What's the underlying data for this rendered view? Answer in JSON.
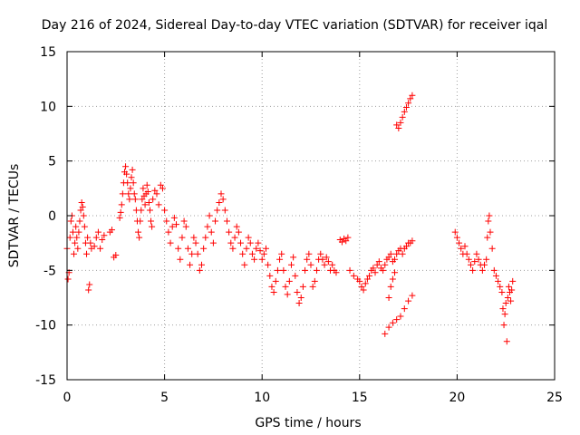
{
  "chart_data": {
    "type": "scatter",
    "title": "Day 216 of 2024, Sidereal Day-to-day VTEC variation (SDTVAR) for receiver iqal",
    "xlabel": "GPS time / hours",
    "ylabel": "SDTVAR / TECUs",
    "xlim": [
      0,
      25
    ],
    "ylim": [
      -15,
      15
    ],
    "xticks": [
      0,
      5,
      10,
      15,
      20,
      25
    ],
    "yticks": [
      -15,
      -10,
      -5,
      0,
      5,
      10,
      15
    ],
    "xtick_labels": [
      "0",
      "5",
      "10",
      "15",
      "20",
      "25"
    ],
    "ytick_labels": [
      "-15",
      "-10",
      "-5",
      "0",
      "5",
      "10",
      "15"
    ],
    "grid": true,
    "marker": "+",
    "color": "#ff0000",
    "series": [
      {
        "name": "SDTVAR iqal",
        "points": [
          [
            0.0,
            -3.0
          ],
          [
            0.05,
            -5.8
          ],
          [
            0.1,
            -5.2
          ],
          [
            0.15,
            -2.0
          ],
          [
            0.2,
            -0.5
          ],
          [
            0.25,
            0.0
          ],
          [
            0.3,
            -1.5
          ],
          [
            0.35,
            -3.5
          ],
          [
            0.4,
            -2.5
          ],
          [
            0.45,
            -1.0
          ],
          [
            0.5,
            -2.0
          ],
          [
            0.55,
            -3.0
          ],
          [
            0.6,
            -1.5
          ],
          [
            0.65,
            -0.5
          ],
          [
            0.7,
            0.5
          ],
          [
            0.75,
            1.2
          ],
          [
            0.8,
            0.8
          ],
          [
            0.85,
            0.0
          ],
          [
            0.9,
            -1.0
          ],
          [
            0.95,
            -2.5
          ],
          [
            1.0,
            -3.5
          ],
          [
            1.05,
            -2.0
          ],
          [
            1.1,
            -6.8
          ],
          [
            1.15,
            -6.3
          ],
          [
            1.2,
            -2.5
          ],
          [
            1.25,
            -3.0
          ],
          [
            1.4,
            -2.8
          ],
          [
            1.5,
            -2.0
          ],
          [
            1.6,
            -1.5
          ],
          [
            1.7,
            -3.0
          ],
          [
            1.8,
            -2.2
          ],
          [
            1.9,
            -1.8
          ],
          [
            2.2,
            -1.5
          ],
          [
            2.3,
            -1.3
          ],
          [
            2.4,
            -3.8
          ],
          [
            2.5,
            -3.6
          ],
          [
            2.7,
            -0.2
          ],
          [
            2.75,
            0.3
          ],
          [
            2.8,
            1.0
          ],
          [
            2.85,
            2.0
          ],
          [
            2.9,
            3.0
          ],
          [
            2.95,
            4.0
          ],
          [
            3.0,
            4.5
          ],
          [
            3.05,
            3.8
          ],
          [
            3.1,
            3.0
          ],
          [
            3.15,
            2.0
          ],
          [
            3.2,
            1.5
          ],
          [
            3.25,
            2.5
          ],
          [
            3.3,
            3.5
          ],
          [
            3.35,
            4.2
          ],
          [
            3.4,
            3.0
          ],
          [
            3.45,
            2.0
          ],
          [
            3.5,
            1.5
          ],
          [
            3.55,
            0.5
          ],
          [
            3.6,
            -0.5
          ],
          [
            3.65,
            -1.5
          ],
          [
            3.7,
            -2.0
          ],
          [
            3.75,
            -0.5
          ],
          [
            3.8,
            0.5
          ],
          [
            3.85,
            1.5
          ],
          [
            3.9,
            2.5
          ],
          [
            3.95,
            1.8
          ],
          [
            4.0,
            1.0
          ],
          [
            4.05,
            2.0
          ],
          [
            4.1,
            2.8
          ],
          [
            4.15,
            2.2
          ],
          [
            4.2,
            1.2
          ],
          [
            4.25,
            0.5
          ],
          [
            4.3,
            -0.5
          ],
          [
            4.35,
            -1.0
          ],
          [
            4.4,
            1.5
          ],
          [
            4.5,
            2.3
          ],
          [
            4.6,
            2.0
          ],
          [
            4.7,
            1.0
          ],
          [
            4.8,
            2.8
          ],
          [
            4.9,
            2.5
          ],
          [
            5.0,
            0.5
          ],
          [
            5.1,
            -0.5
          ],
          [
            5.2,
            -1.5
          ],
          [
            5.3,
            -2.5
          ],
          [
            5.4,
            -1.0
          ],
          [
            5.5,
            -0.2
          ],
          [
            5.6,
            -0.8
          ],
          [
            5.7,
            -3.0
          ],
          [
            5.8,
            -4.0
          ],
          [
            5.9,
            -2.0
          ],
          [
            6.0,
            -0.5
          ],
          [
            6.1,
            -1.0
          ],
          [
            6.2,
            -3.0
          ],
          [
            6.3,
            -4.5
          ],
          [
            6.4,
            -3.5
          ],
          [
            6.5,
            -2.0
          ],
          [
            6.6,
            -2.5
          ],
          [
            6.7,
            -3.5
          ],
          [
            6.8,
            -5.0
          ],
          [
            6.9,
            -4.5
          ],
          [
            7.0,
            -3.0
          ],
          [
            7.1,
            -2.0
          ],
          [
            7.2,
            -1.0
          ],
          [
            7.3,
            0.0
          ],
          [
            7.4,
            -1.5
          ],
          [
            7.5,
            -2.5
          ],
          [
            7.6,
            -0.5
          ],
          [
            7.7,
            0.5
          ],
          [
            7.8,
            1.2
          ],
          [
            7.9,
            2.0
          ],
          [
            8.0,
            1.5
          ],
          [
            8.1,
            0.5
          ],
          [
            8.2,
            -0.5
          ],
          [
            8.3,
            -1.5
          ],
          [
            8.4,
            -2.5
          ],
          [
            8.5,
            -3.0
          ],
          [
            8.6,
            -2.0
          ],
          [
            8.7,
            -1.0
          ],
          [
            8.8,
            -1.5
          ],
          [
            8.9,
            -2.5
          ],
          [
            9.0,
            -3.5
          ],
          [
            9.1,
            -4.5
          ],
          [
            9.2,
            -3.0
          ],
          [
            9.3,
            -2.0
          ],
          [
            9.4,
            -2.5
          ],
          [
            9.5,
            -3.5
          ],
          [
            9.6,
            -4.0
          ],
          [
            9.7,
            -3.0
          ],
          [
            9.8,
            -2.5
          ],
          [
            9.9,
            -3.2
          ],
          [
            10.0,
            -4.0
          ],
          [
            10.1,
            -3.5
          ],
          [
            10.2,
            -3.0
          ],
          [
            10.3,
            -4.5
          ],
          [
            10.4,
            -5.5
          ],
          [
            10.5,
            -6.5
          ],
          [
            10.6,
            -7.0
          ],
          [
            10.7,
            -6.0
          ],
          [
            10.8,
            -5.0
          ],
          [
            10.9,
            -4.0
          ],
          [
            11.0,
            -3.5
          ],
          [
            11.1,
            -5.0
          ],
          [
            11.2,
            -6.5
          ],
          [
            11.3,
            -7.2
          ],
          [
            11.4,
            -6.0
          ],
          [
            11.5,
            -4.5
          ],
          [
            11.6,
            -3.8
          ],
          [
            11.7,
            -5.5
          ],
          [
            11.8,
            -7.0
          ],
          [
            11.9,
            -8.0
          ],
          [
            12.0,
            -7.5
          ],
          [
            12.1,
            -6.5
          ],
          [
            12.2,
            -5.0
          ],
          [
            12.3,
            -4.0
          ],
          [
            12.4,
            -3.5
          ],
          [
            12.5,
            -4.5
          ],
          [
            12.6,
            -6.5
          ],
          [
            12.7,
            -6.0
          ],
          [
            12.8,
            -5.0
          ],
          [
            12.9,
            -4.0
          ],
          [
            13.0,
            -3.5
          ],
          [
            13.1,
            -4.0
          ],
          [
            13.2,
            -4.5
          ],
          [
            13.3,
            -3.8
          ],
          [
            13.4,
            -4.2
          ],
          [
            13.5,
            -5.0
          ],
          [
            13.6,
            -4.5
          ],
          [
            13.7,
            -5.0
          ],
          [
            13.8,
            -5.2
          ],
          [
            14.0,
            -2.2
          ],
          [
            14.1,
            -2.4
          ],
          [
            14.2,
            -2.1
          ],
          [
            14.3,
            -2.3
          ],
          [
            14.4,
            -2.0
          ],
          [
            14.5,
            -5.0
          ],
          [
            14.7,
            -5.5
          ],
          [
            14.9,
            -5.8
          ],
          [
            15.0,
            -6.0
          ],
          [
            15.1,
            -6.5
          ],
          [
            15.2,
            -6.8
          ],
          [
            15.3,
            -6.2
          ],
          [
            15.4,
            -5.8
          ],
          [
            15.5,
            -5.5
          ],
          [
            15.6,
            -5.0
          ],
          [
            15.7,
            -4.8
          ],
          [
            15.8,
            -5.2
          ],
          [
            15.9,
            -4.5
          ],
          [
            16.0,
            -4.2
          ],
          [
            16.1,
            -4.8
          ],
          [
            16.2,
            -5.0
          ],
          [
            16.3,
            -4.5
          ],
          [
            16.4,
            -4.0
          ],
          [
            16.5,
            -3.8
          ],
          [
            16.6,
            -3.5
          ],
          [
            16.7,
            -4.2
          ],
          [
            16.8,
            -4.0
          ],
          [
            16.9,
            -3.5
          ],
          [
            17.0,
            -3.2
          ],
          [
            17.1,
            -3.0
          ],
          [
            17.2,
            -3.5
          ],
          [
            17.3,
            -3.0
          ],
          [
            17.4,
            -2.8
          ],
          [
            17.5,
            -2.5
          ],
          [
            17.6,
            -2.5
          ],
          [
            17.7,
            -2.3
          ],
          [
            16.5,
            -7.5
          ],
          [
            16.6,
            -6.5
          ],
          [
            16.7,
            -5.8
          ],
          [
            16.8,
            -5.2
          ],
          [
            16.3,
            -10.8
          ],
          [
            16.5,
            -10.2
          ],
          [
            16.7,
            -9.8
          ],
          [
            16.9,
            -9.5
          ],
          [
            17.1,
            -9.2
          ],
          [
            17.3,
            -8.5
          ],
          [
            17.5,
            -7.8
          ],
          [
            17.7,
            -7.3
          ],
          [
            16.9,
            8.3
          ],
          [
            17.0,
            8.0
          ],
          [
            17.1,
            8.5
          ],
          [
            17.2,
            9.0
          ],
          [
            17.3,
            9.5
          ],
          [
            17.4,
            9.9
          ],
          [
            17.5,
            10.3
          ],
          [
            17.6,
            10.7
          ],
          [
            17.7,
            11.0
          ],
          [
            19.9,
            -1.5
          ],
          [
            20.0,
            -2.0
          ],
          [
            20.1,
            -2.5
          ],
          [
            20.2,
            -3.0
          ],
          [
            20.3,
            -3.5
          ],
          [
            20.4,
            -2.8
          ],
          [
            20.5,
            -3.5
          ],
          [
            20.6,
            -4.0
          ],
          [
            20.7,
            -4.5
          ],
          [
            20.8,
            -5.0
          ],
          [
            20.9,
            -4.2
          ],
          [
            21.0,
            -3.5
          ],
          [
            21.1,
            -4.0
          ],
          [
            21.2,
            -4.5
          ],
          [
            21.3,
            -5.0
          ],
          [
            21.4,
            -4.5
          ],
          [
            21.5,
            -4.0
          ],
          [
            21.55,
            -2.0
          ],
          [
            21.6,
            -0.5
          ],
          [
            21.65,
            0.0
          ],
          [
            21.7,
            -1.5
          ],
          [
            21.8,
            -3.0
          ],
          [
            21.9,
            -5.0
          ],
          [
            22.0,
            -5.5
          ],
          [
            22.1,
            -6.0
          ],
          [
            22.2,
            -6.5
          ],
          [
            22.3,
            -7.0
          ],
          [
            22.35,
            -8.5
          ],
          [
            22.4,
            -10.0
          ],
          [
            22.45,
            -9.0
          ],
          [
            22.5,
            -8.0
          ],
          [
            22.55,
            -11.5
          ],
          [
            22.6,
            -7.5
          ],
          [
            22.65,
            -6.5
          ],
          [
            22.7,
            -7.0
          ],
          [
            22.75,
            -7.8
          ],
          [
            22.8,
            -6.8
          ],
          [
            22.85,
            -6.0
          ]
        ]
      }
    ]
  }
}
